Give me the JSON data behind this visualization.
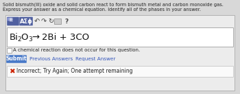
{
  "title_line1": "Solid bismuth(III) oxide and solid carbon react to form bismuth metal and carbon monoxide gas.",
  "title_line2": "Express your answer as a chemical equation. Identify all of the phases in your answer.",
  "toolbar_label": "AΣϕ",
  "checkbox_label": "A chemical reaction does not occur for this question.",
  "submit_label": "Submit",
  "prev_answers_label": "Previous Answers",
  "request_answer_label": "Request Answer",
  "incorrect_label": "Incorrect; Try Again; One attempt remaining",
  "bg_color": "#d8d8d8",
  "input_area_bg": "#e8e8ea",
  "input_box_color": "#ffffff",
  "toolbar_bg": "#6e7faa",
  "toolbar_icon_bg": "#4a5a8a",
  "submit_btn_color": "#4a7ac8",
  "submit_text_color": "#ffffff",
  "incorrect_x_color": "#cc2200",
  "link_color": "#3355bb",
  "text_color": "#222222",
  "incorrect_box_color": "#fafafa",
  "incorrect_border_color": "#cccccc",
  "eq_color": "#111111"
}
